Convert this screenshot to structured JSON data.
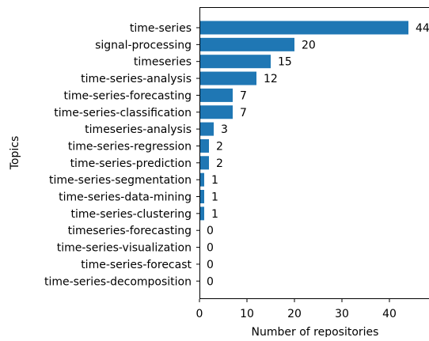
{
  "chart_data": {
    "type": "bar",
    "orientation": "horizontal",
    "categories": [
      "time-series",
      "signal-processing",
      "timeseries",
      "time-series-analysis",
      "time-series-forecasting",
      "time-series-classification",
      "timeseries-analysis",
      "time-series-regression",
      "time-series-prediction",
      "time-series-segmentation",
      "time-series-data-mining",
      "time-series-clustering",
      "timeseries-forecasting",
      "time-series-visualization",
      "time-series-forecast",
      "time-series-decomposition"
    ],
    "values": [
      44,
      20,
      15,
      12,
      7,
      7,
      3,
      2,
      2,
      1,
      1,
      1,
      0,
      0,
      0,
      0
    ],
    "value_labels": [
      "44",
      "20",
      "15",
      "12",
      "7",
      "7",
      "3",
      "2",
      "2",
      "1",
      "1",
      "1",
      "0",
      "0",
      "0",
      "0"
    ],
    "xlabel": "Number of repositories",
    "ylabel": "Topics",
    "xticks": [
      0,
      10,
      20,
      30,
      40
    ],
    "xlim": [
      0,
      47
    ],
    "bar_color": "#1f77b4",
    "grid": false,
    "legend": "none"
  }
}
